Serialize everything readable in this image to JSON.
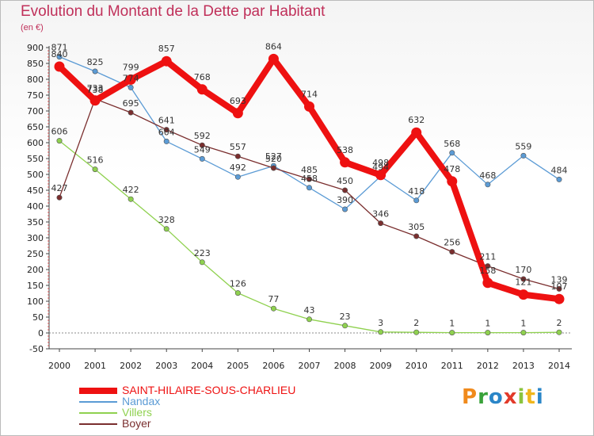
{
  "header": {
    "title": "Evolution du Montant de la Dette par Habitant",
    "subtitle": "(en €)"
  },
  "logo": {
    "text": "Proxiti",
    "colors": [
      "#f08a1c",
      "#39a23a",
      "#2a86c8",
      "#e23a2a",
      "#8bc43f",
      "#f0b61c",
      "#2a86c8"
    ]
  },
  "chart_data": {
    "type": "line",
    "x": [
      "2000",
      "2001",
      "2002",
      "2003",
      "2004",
      "2005",
      "2006",
      "2007",
      "2008",
      "2009",
      "2010",
      "2011",
      "2012",
      "2013",
      "2014"
    ],
    "ylim": [
      -50,
      900
    ],
    "yticks": [
      -50,
      0,
      50,
      100,
      150,
      200,
      250,
      300,
      350,
      400,
      450,
      500,
      550,
      600,
      650,
      700,
      750,
      800,
      850,
      900
    ],
    "grid": false,
    "legend_position": "bottom-left",
    "series": [
      {
        "name": "Villers",
        "color": "#8fd14f",
        "values": [
          606,
          516,
          422,
          328,
          223,
          126,
          77,
          43,
          23,
          3,
          2,
          1,
          1,
          1,
          2
        ]
      },
      {
        "name": "Nandax",
        "color": "#5b9bd5",
        "values": [
          871,
          825,
          774,
          604,
          549,
          492,
          527,
          458,
          390,
          494,
          418,
          568,
          468,
          559,
          484
        ]
      },
      {
        "name": "Boyer",
        "color": "#7a2e2e",
        "values": [
          427,
          738,
          695,
          641,
          592,
          557,
          520,
          485,
          450,
          346,
          305,
          256,
          211,
          170,
          139
        ]
      },
      {
        "name": "SAINT-HILAIRE-SOUS-CHARLIEU",
        "color": "#ee1111",
        "values": [
          840,
          733,
          799,
          857,
          768,
          693,
          864,
          714,
          538,
          498,
          632,
          478,
          158,
          121,
          107
        ]
      }
    ],
    "legend": [
      "SAINT-HILAIRE-SOUS-CHARLIEU",
      "Nandax",
      "Villers",
      "Boyer"
    ]
  }
}
